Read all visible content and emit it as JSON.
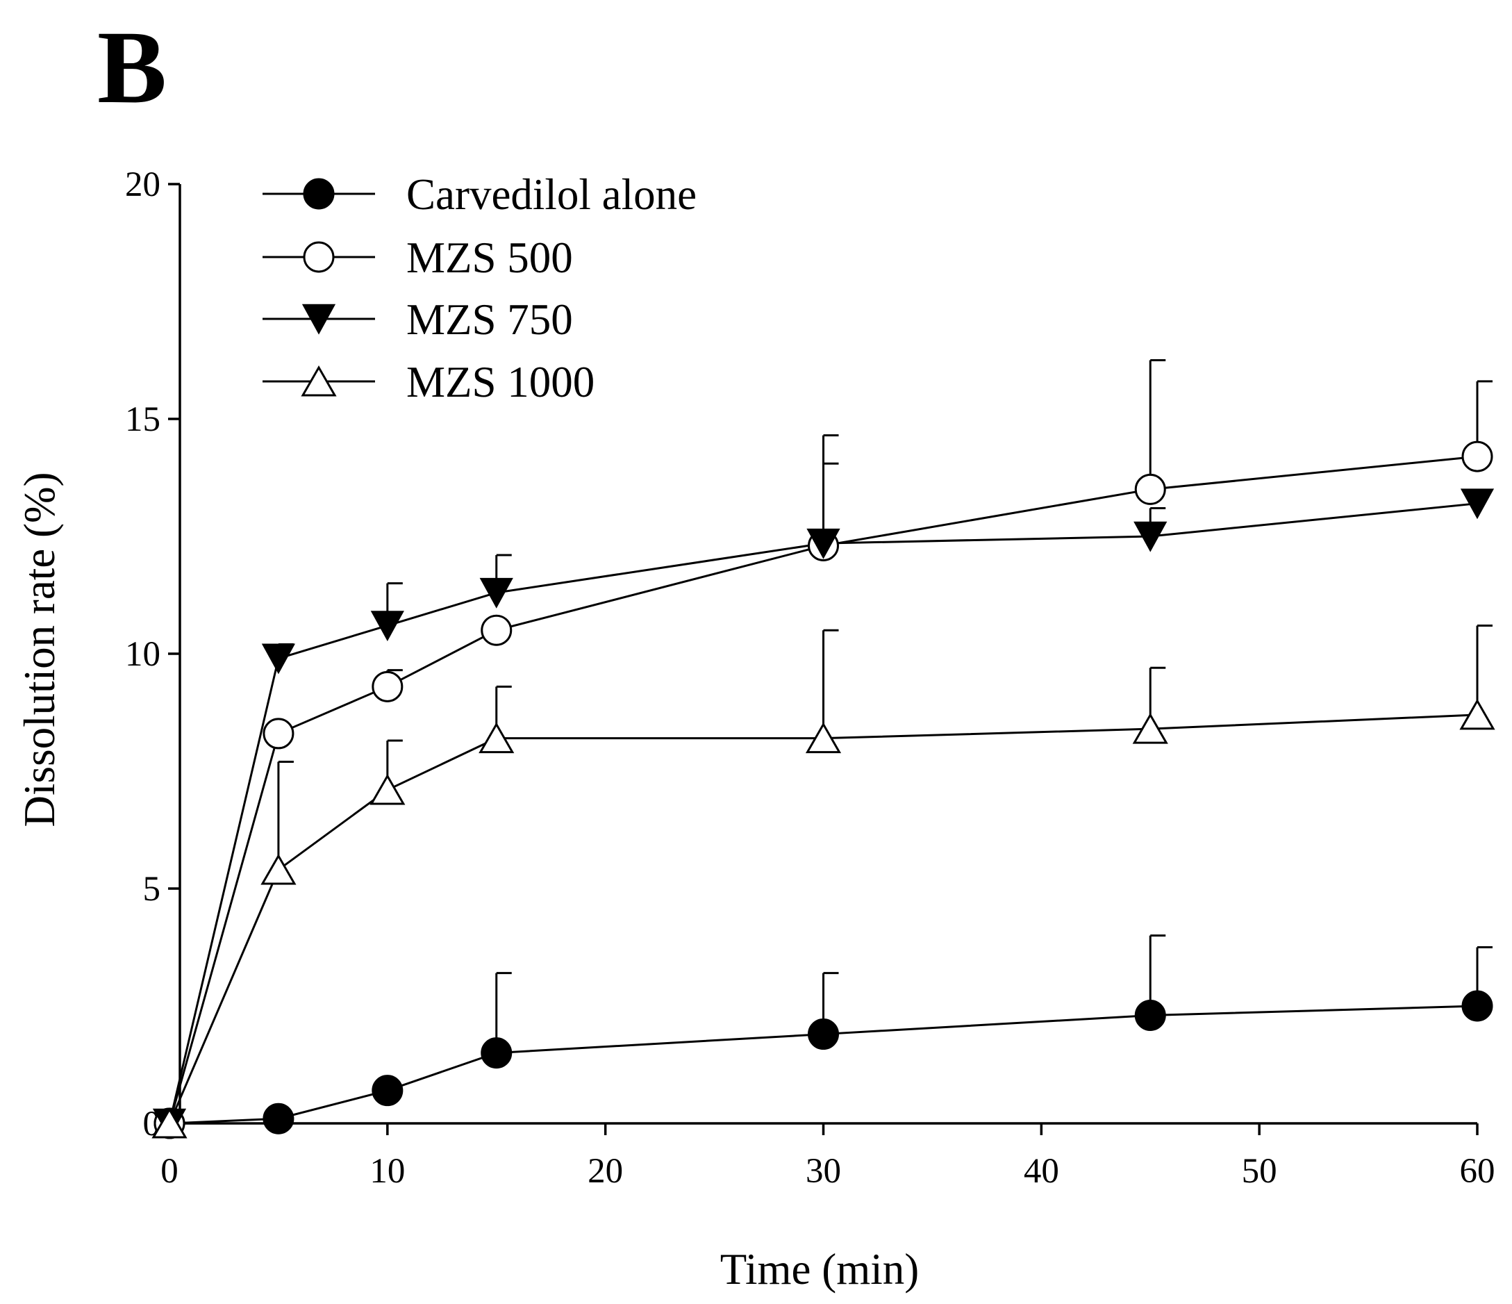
{
  "panel_label": "B",
  "chart_data": {
    "type": "line",
    "title": "",
    "xlabel": "Time (min)",
    "ylabel": "Dissolution rate (%)",
    "xlim": [
      0,
      60
    ],
    "ylim": [
      0,
      20
    ],
    "xticks": [
      0,
      10,
      20,
      30,
      40,
      50,
      60
    ],
    "yticks": [
      0,
      5,
      10,
      15,
      20
    ],
    "grid": false,
    "legend_position": "top-left",
    "x": [
      0,
      5,
      10,
      15,
      30,
      45,
      60
    ],
    "series": [
      {
        "name": "Carvedilol alone",
        "marker": "filled-circle",
        "values": [
          0,
          0.1,
          0.7,
          1.5,
          1.9,
          2.3,
          2.5
        ],
        "error": [
          0,
          0,
          0,
          1.7,
          1.3,
          1.7,
          1.25
        ]
      },
      {
        "name": "MZS 500",
        "marker": "open-circle",
        "values": [
          0,
          8.3,
          9.3,
          10.5,
          12.3,
          13.5,
          14.2
        ],
        "error": [
          0,
          0,
          0.35,
          0,
          1.75,
          2.75,
          1.6
        ]
      },
      {
        "name": "MZS 750",
        "marker": "filled-triangle-down",
        "values": [
          0,
          9.9,
          10.6,
          11.3,
          12.35,
          12.5,
          13.2
        ],
        "error": [
          0,
          0.3,
          0.9,
          0.8,
          2.3,
          0.6,
          0
        ]
      },
      {
        "name": "MZS 1000",
        "marker": "open-triangle-up",
        "values": [
          0,
          5.4,
          7.1,
          8.2,
          8.2,
          8.4,
          8.7
        ],
        "error": [
          0,
          2.3,
          1.05,
          1.1,
          2.3,
          1.3,
          1.9
        ]
      }
    ]
  }
}
